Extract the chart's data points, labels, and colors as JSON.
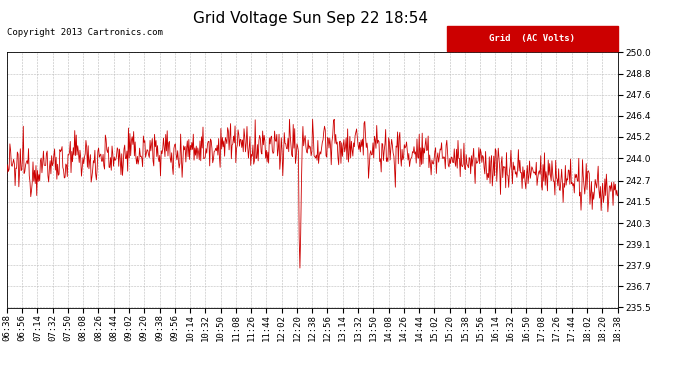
{
  "title": "Grid Voltage Sun Sep 22 18:54",
  "copyright": "Copyright 2013 Cartronics.com",
  "legend_label": "Grid  (AC Volts)",
  "legend_bg": "#cc0000",
  "legend_fg": "#ffffff",
  "line_color": "#cc0000",
  "bg_color": "#ffffff",
  "grid_color": "#bbbbbb",
  "ylim": [
    235.5,
    250.0
  ],
  "yticks": [
    235.5,
    236.7,
    237.9,
    239.1,
    240.3,
    241.5,
    242.7,
    244.0,
    245.2,
    246.4,
    247.6,
    248.8,
    250.0
  ],
  "x_labels": [
    "06:38",
    "06:56",
    "07:14",
    "07:32",
    "07:50",
    "08:08",
    "08:26",
    "08:44",
    "09:02",
    "09:20",
    "09:38",
    "09:56",
    "10:14",
    "10:32",
    "10:50",
    "11:08",
    "11:26",
    "11:44",
    "12:02",
    "12:20",
    "12:38",
    "12:56",
    "13:14",
    "13:32",
    "13:50",
    "14:08",
    "14:26",
    "14:44",
    "15:02",
    "15:20",
    "15:38",
    "15:56",
    "16:14",
    "16:32",
    "16:50",
    "17:08",
    "17:26",
    "17:44",
    "18:02",
    "18:20",
    "18:38"
  ],
  "title_fontsize": 11,
  "tick_fontsize": 6.5,
  "copyright_fontsize": 6.5,
  "legend_fontsize": 6.5
}
